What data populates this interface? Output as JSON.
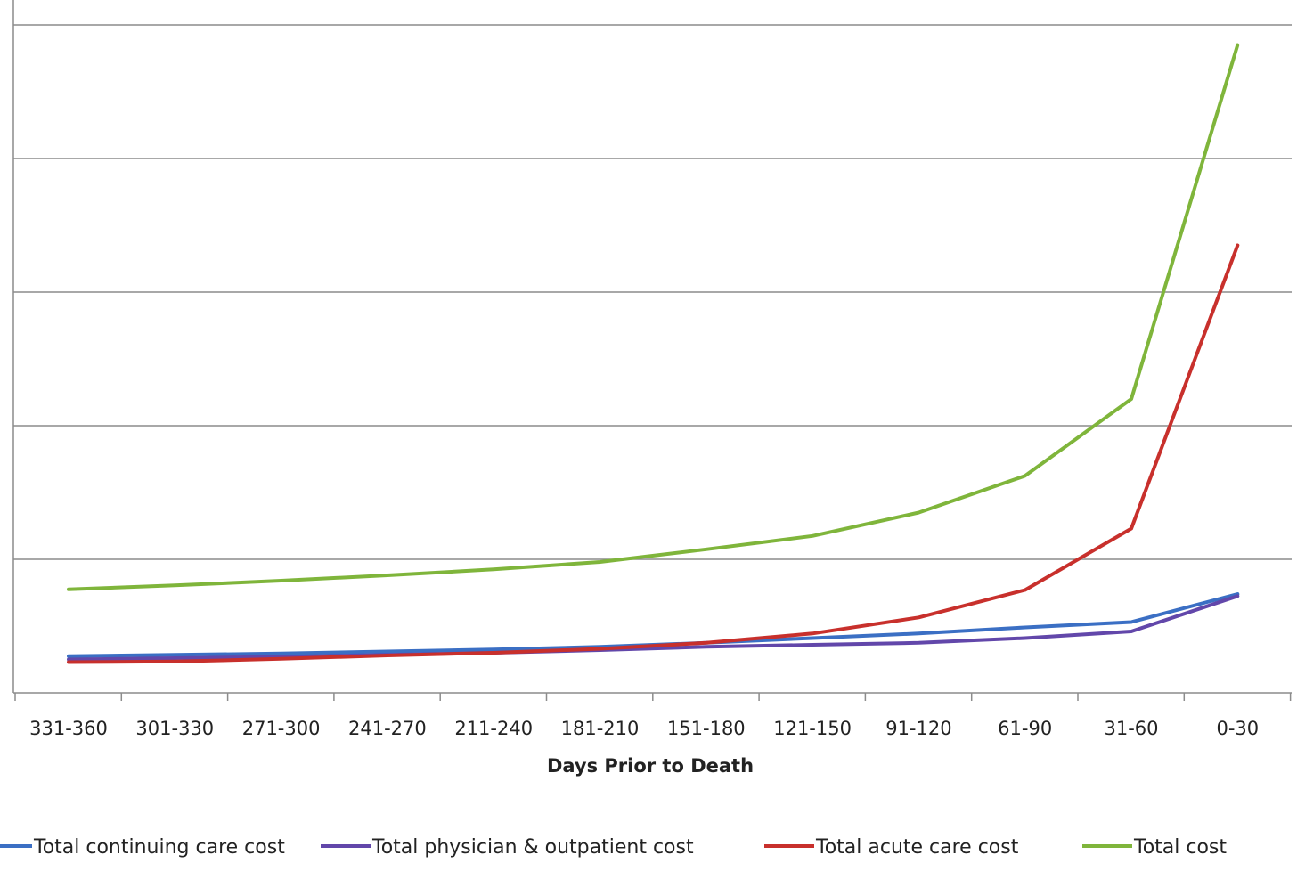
{
  "chart_data": {
    "type": "line",
    "title": "",
    "xlabel": "Days Prior to Death",
    "ylabel": "",
    "categories": [
      "331-360",
      "301-330",
      "271-300",
      "241-270",
      "211-240",
      "181-210",
      "151-180",
      "121-150",
      "91-120",
      "61-90",
      "31-60",
      "0-30"
    ],
    "ylim": [
      0,
      100
    ],
    "y_gridlines": [
      20,
      40,
      60,
      80,
      100
    ],
    "y_tick_labels_visible": false,
    "grid": true,
    "legend_position": "bottom",
    "series": [
      {
        "name": "Total continuing care cost",
        "color": "#3b6fc4",
        "values": [
          5.5,
          5.7,
          5.9,
          6.2,
          6.5,
          6.9,
          7.5,
          8.2,
          8.9,
          9.8,
          10.6,
          14.8
        ]
      },
      {
        "name": "Total physician & outpatient cost",
        "color": "#6247aa",
        "values": [
          5.0,
          5.2,
          5.4,
          5.7,
          6.0,
          6.4,
          6.9,
          7.2,
          7.5,
          8.2,
          9.2,
          14.5
        ]
      },
      {
        "name": "Total acute care cost",
        "color": "#c8302c",
        "values": [
          4.6,
          4.7,
          5.1,
          5.6,
          6.0,
          6.6,
          7.5,
          8.9,
          11.3,
          15.4,
          24.6,
          67.0
        ]
      },
      {
        "name": "Total cost",
        "color": "#7fb53b",
        "values": [
          15.5,
          16.1,
          16.8,
          17.6,
          18.5,
          19.6,
          21.5,
          23.5,
          27.0,
          32.5,
          44.0,
          97.0
        ]
      }
    ]
  }
}
